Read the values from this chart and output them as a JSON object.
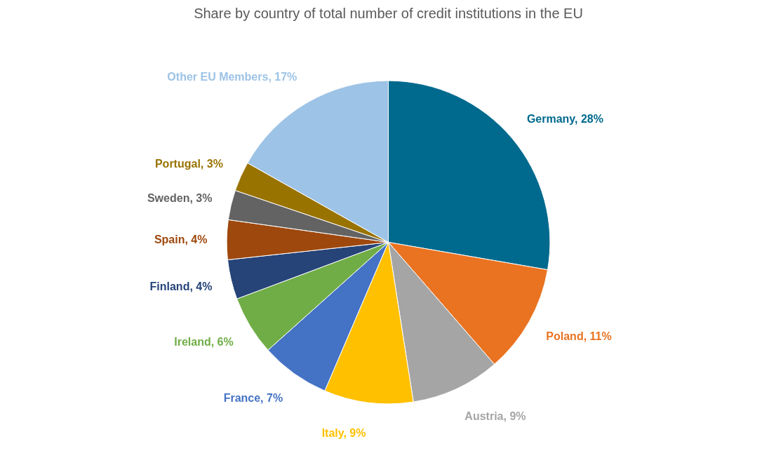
{
  "chart_data": {
    "type": "pie",
    "title": "Share by country of total number of credit institutions in the EU",
    "categories": [
      "Germany",
      "Poland",
      "Austria",
      "Italy",
      "France",
      "Ireland",
      "Finland",
      "Spain",
      "Sweden",
      "Portugal",
      "Other EU Members"
    ],
    "values": [
      28,
      11,
      9,
      9,
      7,
      6,
      4,
      4,
      3,
      3,
      17
    ],
    "value_labels": [
      "28%",
      "11%",
      "9%",
      "9%",
      "7%",
      "6%",
      "4%",
      "4%",
      "3%",
      "3%",
      "17%"
    ],
    "colors": [
      "#006a8e",
      "#e97321",
      "#a5a5a5",
      "#ffc000",
      "#4472c4",
      "#70ad47",
      "#264478",
      "#9e480e",
      "#636363",
      "#997300",
      "#9dc3e6"
    ]
  }
}
